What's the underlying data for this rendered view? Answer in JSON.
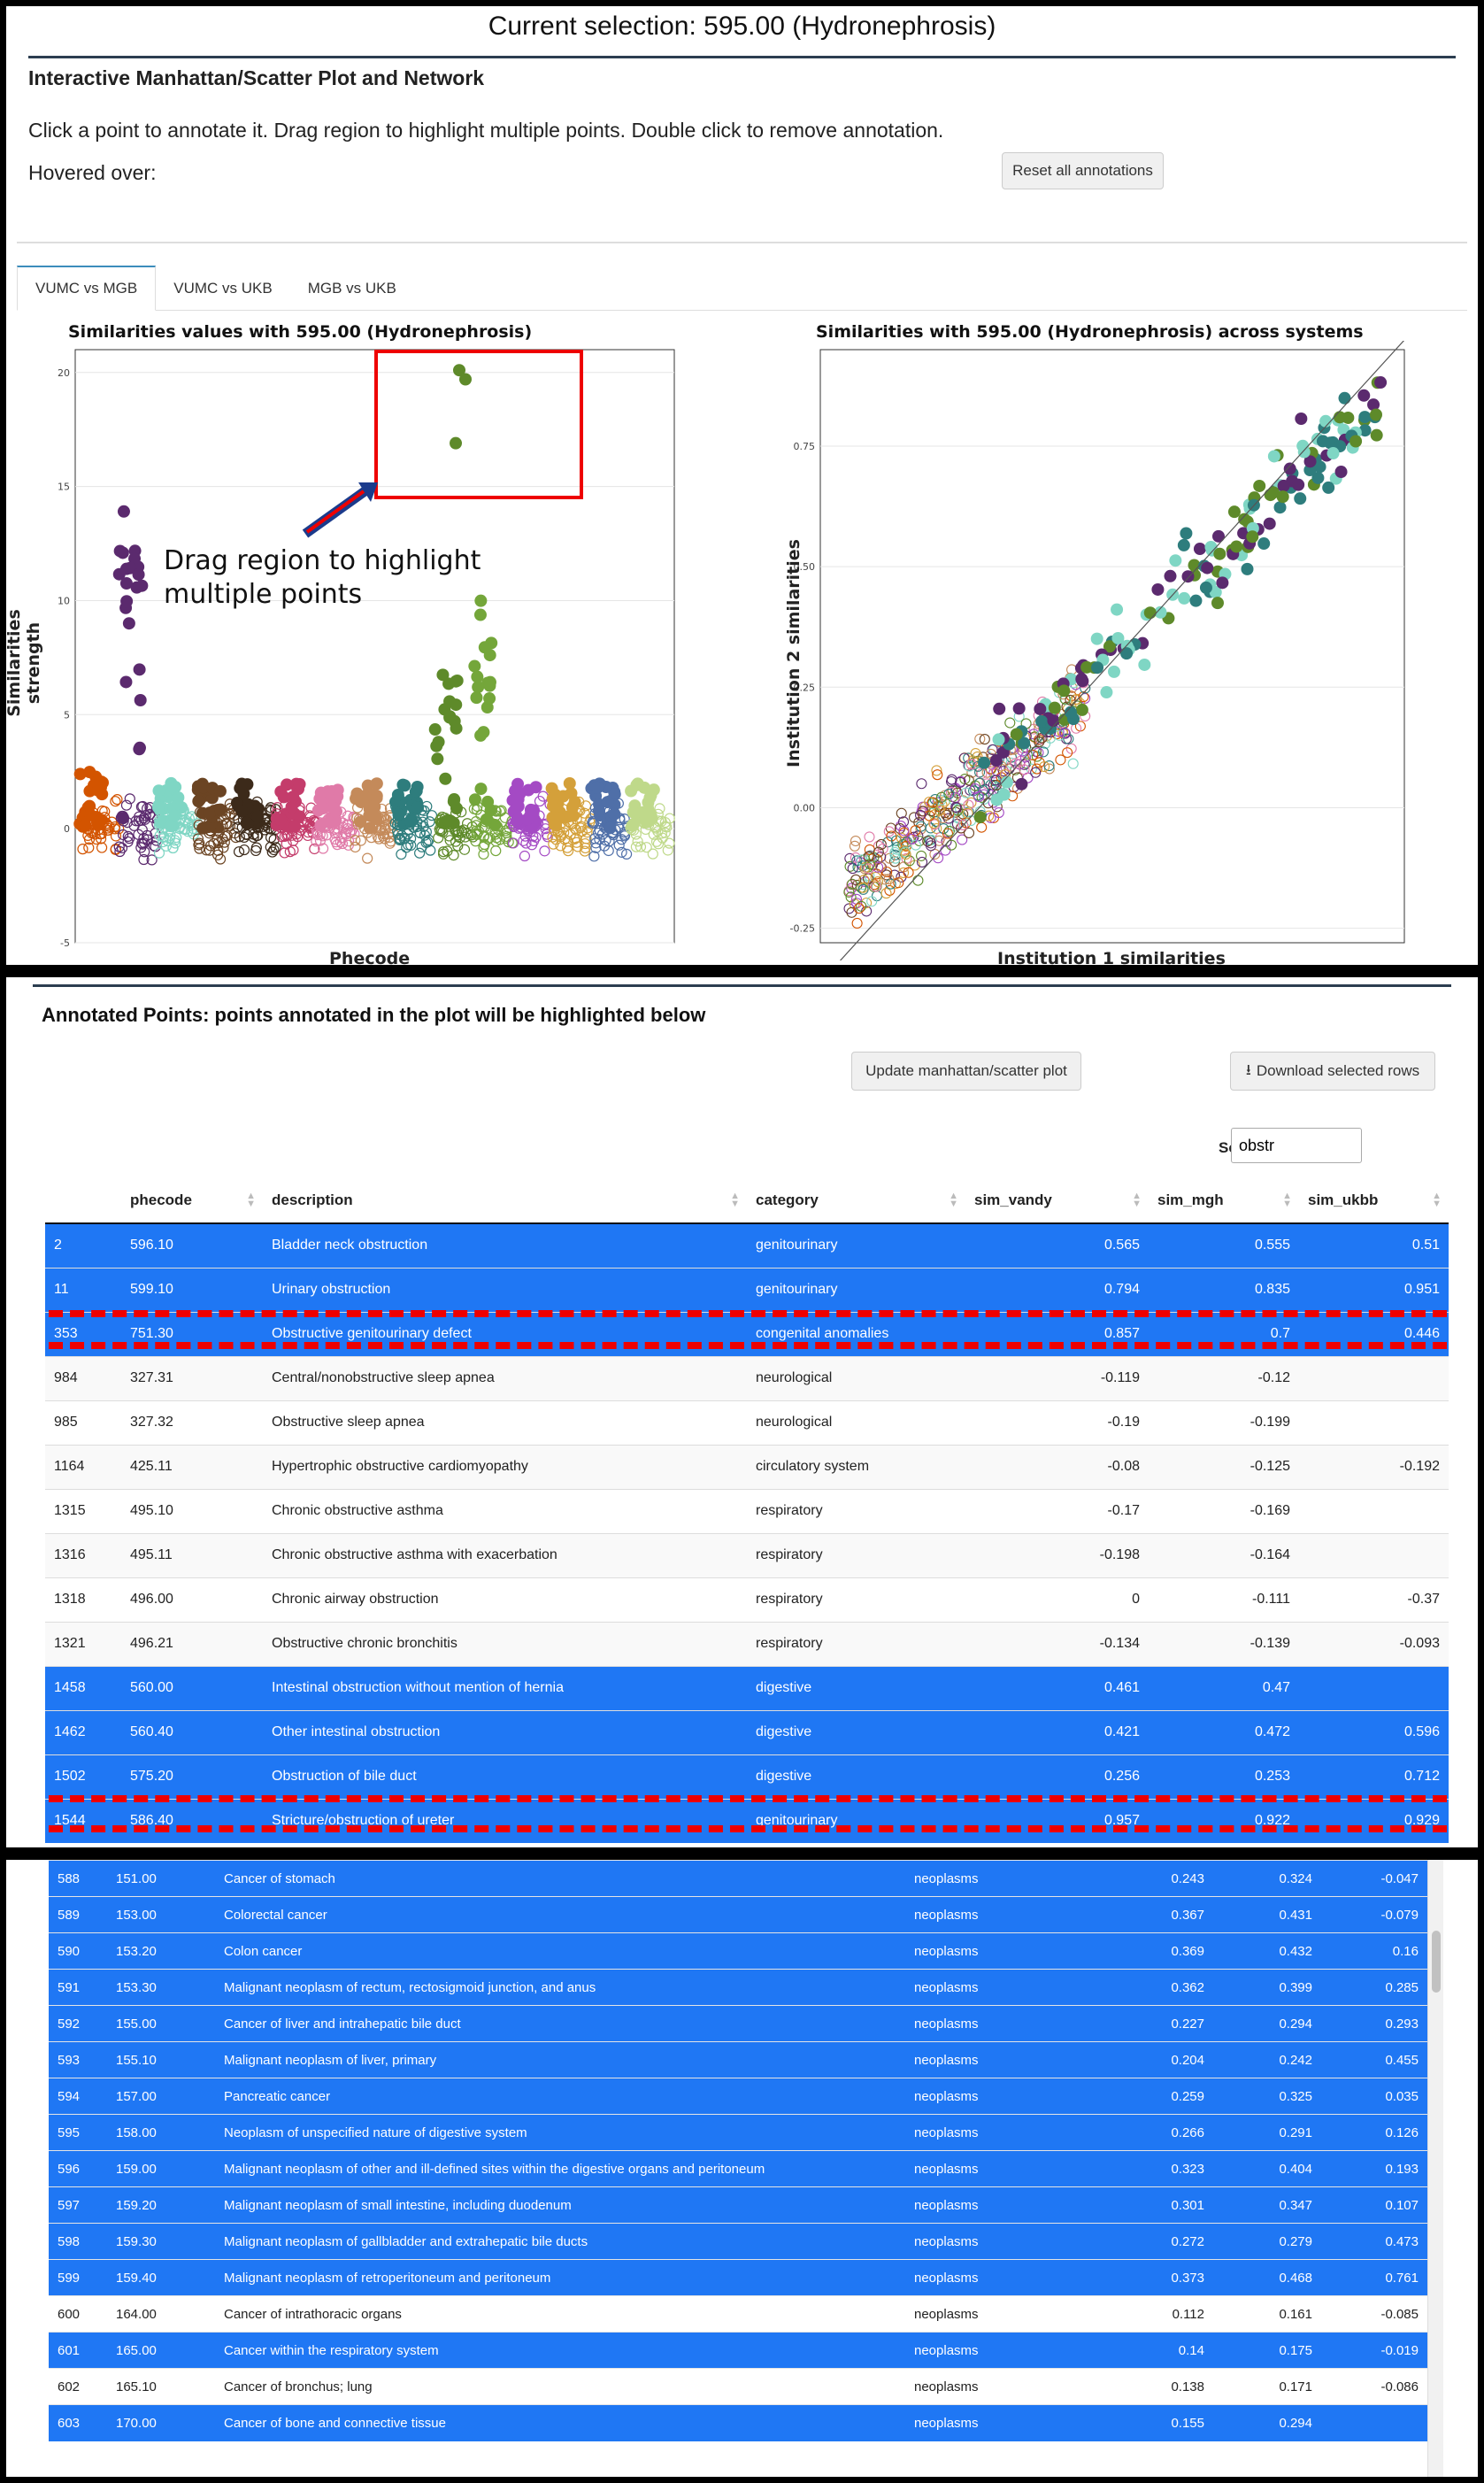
{
  "header": {
    "selection": "Current selection: 595.00 (Hydronephrosis)"
  },
  "plot_card": {
    "title": "Interactive Manhattan/Scatter Plot and Network",
    "instructions": "Click a point to annotate it. Drag region to highlight multiple points. Double click to remove annotation.",
    "hovered_label": "Hovered over:",
    "reset_button": "Reset all annotations",
    "tabs": [
      "VUMC vs MGB",
      "VUMC vs UKB",
      "MGB vs UKB"
    ]
  },
  "manhattan": {
    "title": "Similarities values with 595.00 (Hydronephrosis)",
    "xlabel": "Phecode",
    "ylabel": "Similarities strength",
    "annotation": [
      "Drag region to highlight",
      "multiple points"
    ]
  },
  "scatter": {
    "title": "Similarities with 595.00 (Hydronephrosis) across systems",
    "xlabel": "Institution 1 similarities",
    "ylabel": "Institution 2 similarities"
  },
  "chart_data": [
    {
      "type": "scatter",
      "title": "Similarities values with 595.00 (Hydronephrosis)",
      "xlabel": "Phecode",
      "ylabel": "Similarities strength",
      "yticks": [
        "-5",
        "0",
        "5",
        "10",
        "15",
        "20"
      ],
      "ylim": [
        -5,
        21
      ],
      "highlighted_points": [
        20.1,
        19.7,
        16.9
      ],
      "grid": true
    },
    {
      "type": "scatter",
      "title": "Similarities with 595.00 (Hydronephrosis) across systems",
      "xlabel": "Institution 1 similarities",
      "ylabel": "Institution 2 similarities",
      "yticks": [
        "-0.25",
        "0.00",
        "0.25",
        "0.50",
        "0.75"
      ],
      "ylim": [
        -0.28,
        0.95
      ],
      "diagonal": "y = x",
      "grid": true
    }
  ],
  "table_card": {
    "title": "Annotated Points: points annotated in the plot will be highlighted below",
    "update_button": "Update manhattan/scatter plot",
    "download_button": "Download selected rows",
    "search_label": "Search:",
    "search_value": "obstr",
    "columns": [
      "",
      "phecode",
      "description",
      "category",
      "sim_vandy",
      "sim_mgh",
      "sim_ukbb"
    ],
    "rows": [
      {
        "id": "2",
        "phecode": "596.10",
        "description": "Bladder neck obstruction",
        "category": "genitourinary",
        "sim_vandy": "0.565",
        "sim_mgh": "0.555",
        "sim_ukbb": "0.51",
        "selected": true
      },
      {
        "id": "11",
        "phecode": "599.10",
        "description": "Urinary obstruction",
        "category": "genitourinary",
        "sim_vandy": "0.794",
        "sim_mgh": "0.835",
        "sim_ukbb": "0.951",
        "selected": true
      },
      {
        "id": "353",
        "phecode": "751.30",
        "description": "Obstructive genitourinary defect",
        "category": "congenital anomalies",
        "sim_vandy": "0.857",
        "sim_mgh": "0.7",
        "sim_ukbb": "0.446",
        "selected": true
      },
      {
        "id": "984",
        "phecode": "327.31",
        "description": "Central/nonobstructive sleep apnea",
        "category": "neurological",
        "sim_vandy": "-0.119",
        "sim_mgh": "-0.12",
        "sim_ukbb": "",
        "selected": false
      },
      {
        "id": "985",
        "phecode": "327.32",
        "description": "Obstructive sleep apnea",
        "category": "neurological",
        "sim_vandy": "-0.19",
        "sim_mgh": "-0.199",
        "sim_ukbb": "",
        "selected": false
      },
      {
        "id": "1164",
        "phecode": "425.11",
        "description": "Hypertrophic obstructive cardiomyopathy",
        "category": "circulatory system",
        "sim_vandy": "-0.08",
        "sim_mgh": "-0.125",
        "sim_ukbb": "-0.192",
        "selected": false
      },
      {
        "id": "1315",
        "phecode": "495.10",
        "description": "Chronic obstructive asthma",
        "category": "respiratory",
        "sim_vandy": "-0.17",
        "sim_mgh": "-0.169",
        "sim_ukbb": "",
        "selected": false
      },
      {
        "id": "1316",
        "phecode": "495.11",
        "description": "Chronic obstructive asthma with exacerbation",
        "category": "respiratory",
        "sim_vandy": "-0.198",
        "sim_mgh": "-0.164",
        "sim_ukbb": "",
        "selected": false
      },
      {
        "id": "1318",
        "phecode": "496.00",
        "description": "Chronic airway obstruction",
        "category": "respiratory",
        "sim_vandy": "0",
        "sim_mgh": "-0.111",
        "sim_ukbb": "-0.37",
        "selected": false
      },
      {
        "id": "1321",
        "phecode": "496.21",
        "description": "Obstructive chronic bronchitis",
        "category": "respiratory",
        "sim_vandy": "-0.134",
        "sim_mgh": "-0.139",
        "sim_ukbb": "-0.093",
        "selected": false
      },
      {
        "id": "1458",
        "phecode": "560.00",
        "description": "Intestinal obstruction without mention of hernia",
        "category": "digestive",
        "sim_vandy": "0.461",
        "sim_mgh": "0.47",
        "sim_ukbb": "",
        "selected": true
      },
      {
        "id": "1462",
        "phecode": "560.40",
        "description": "Other intestinal obstruction",
        "category": "digestive",
        "sim_vandy": "0.421",
        "sim_mgh": "0.472",
        "sim_ukbb": "0.596",
        "selected": true
      },
      {
        "id": "1502",
        "phecode": "575.20",
        "description": "Obstruction of bile duct",
        "category": "digestive",
        "sim_vandy": "0.256",
        "sim_mgh": "0.253",
        "sim_ukbb": "0.712",
        "selected": true
      },
      {
        "id": "1544",
        "phecode": "586.40",
        "description": "Stricture/obstruction of ureter",
        "category": "genitourinary",
        "sim_vandy": "0.957",
        "sim_mgh": "0.922",
        "sim_ukbb": "0.929",
        "selected": true
      }
    ]
  },
  "table2": {
    "rows": [
      {
        "id": "588",
        "phecode": "151.00",
        "description": "Cancer of stomach",
        "category": "neoplasms",
        "sim_vandy": "0.243",
        "sim_mgh": "0.324",
        "sim_ukbb": "-0.047",
        "selected": true
      },
      {
        "id": "589",
        "phecode": "153.00",
        "description": "Colorectal cancer",
        "category": "neoplasms",
        "sim_vandy": "0.367",
        "sim_mgh": "0.431",
        "sim_ukbb": "-0.079",
        "selected": true
      },
      {
        "id": "590",
        "phecode": "153.20",
        "description": "Colon cancer",
        "category": "neoplasms",
        "sim_vandy": "0.369",
        "sim_mgh": "0.432",
        "sim_ukbb": "0.16",
        "selected": true
      },
      {
        "id": "591",
        "phecode": "153.30",
        "description": "Malignant neoplasm of rectum, rectosigmoid junction, and anus",
        "category": "neoplasms",
        "sim_vandy": "0.362",
        "sim_mgh": "0.399",
        "sim_ukbb": "0.285",
        "selected": true
      },
      {
        "id": "592",
        "phecode": "155.00",
        "description": "Cancer of liver and intrahepatic bile duct",
        "category": "neoplasms",
        "sim_vandy": "0.227",
        "sim_mgh": "0.294",
        "sim_ukbb": "0.293",
        "selected": true
      },
      {
        "id": "593",
        "phecode": "155.10",
        "description": "Malignant neoplasm of liver, primary",
        "category": "neoplasms",
        "sim_vandy": "0.204",
        "sim_mgh": "0.242",
        "sim_ukbb": "0.455",
        "selected": true
      },
      {
        "id": "594",
        "phecode": "157.00",
        "description": "Pancreatic cancer",
        "category": "neoplasms",
        "sim_vandy": "0.259",
        "sim_mgh": "0.325",
        "sim_ukbb": "0.035",
        "selected": true
      },
      {
        "id": "595",
        "phecode": "158.00",
        "description": "Neoplasm of unspecified nature of digestive system",
        "category": "neoplasms",
        "sim_vandy": "0.266",
        "sim_mgh": "0.291",
        "sim_ukbb": "0.126",
        "selected": true
      },
      {
        "id": "596",
        "phecode": "159.00",
        "description": "Malignant neoplasm of other and ill-defined sites within the digestive organs and peritoneum",
        "category": "neoplasms",
        "sim_vandy": "0.323",
        "sim_mgh": "0.404",
        "sim_ukbb": "0.193",
        "selected": true
      },
      {
        "id": "597",
        "phecode": "159.20",
        "description": "Malignant neoplasm of small intestine, including duodenum",
        "category": "neoplasms",
        "sim_vandy": "0.301",
        "sim_mgh": "0.347",
        "sim_ukbb": "0.107",
        "selected": true
      },
      {
        "id": "598",
        "phecode": "159.30",
        "description": "Malignant neoplasm of gallbladder and extrahepatic bile ducts",
        "category": "neoplasms",
        "sim_vandy": "0.272",
        "sim_mgh": "0.279",
        "sim_ukbb": "0.473",
        "selected": true
      },
      {
        "id": "599",
        "phecode": "159.40",
        "description": "Malignant neoplasm of retroperitoneum and peritoneum",
        "category": "neoplasms",
        "sim_vandy": "0.373",
        "sim_mgh": "0.468",
        "sim_ukbb": "0.761",
        "selected": true
      },
      {
        "id": "600",
        "phecode": "164.00",
        "description": "Cancer of intrathoracic organs",
        "category": "neoplasms",
        "sim_vandy": "0.112",
        "sim_mgh": "0.161",
        "sim_ukbb": "-0.085",
        "selected": false
      },
      {
        "id": "601",
        "phecode": "165.00",
        "description": "Cancer within the respiratory system",
        "category": "neoplasms",
        "sim_vandy": "0.14",
        "sim_mgh": "0.175",
        "sim_ukbb": "-0.019",
        "selected": true
      },
      {
        "id": "602",
        "phecode": "165.10",
        "description": "Cancer of bronchus; lung",
        "category": "neoplasms",
        "sim_vandy": "0.138",
        "sim_mgh": "0.171",
        "sim_ukbb": "-0.086",
        "selected": false
      },
      {
        "id": "603",
        "phecode": "170.00",
        "description": "Cancer of bone and connective tissue",
        "category": "neoplasms",
        "sim_vandy": "0.155",
        "sim_mgh": "0.294",
        "sim_ukbb": "",
        "selected": true
      }
    ]
  },
  "colors": {
    "selected_row": "#1f77f4",
    "highlight_box": "#e00000",
    "accent": "#3c8dbc"
  }
}
